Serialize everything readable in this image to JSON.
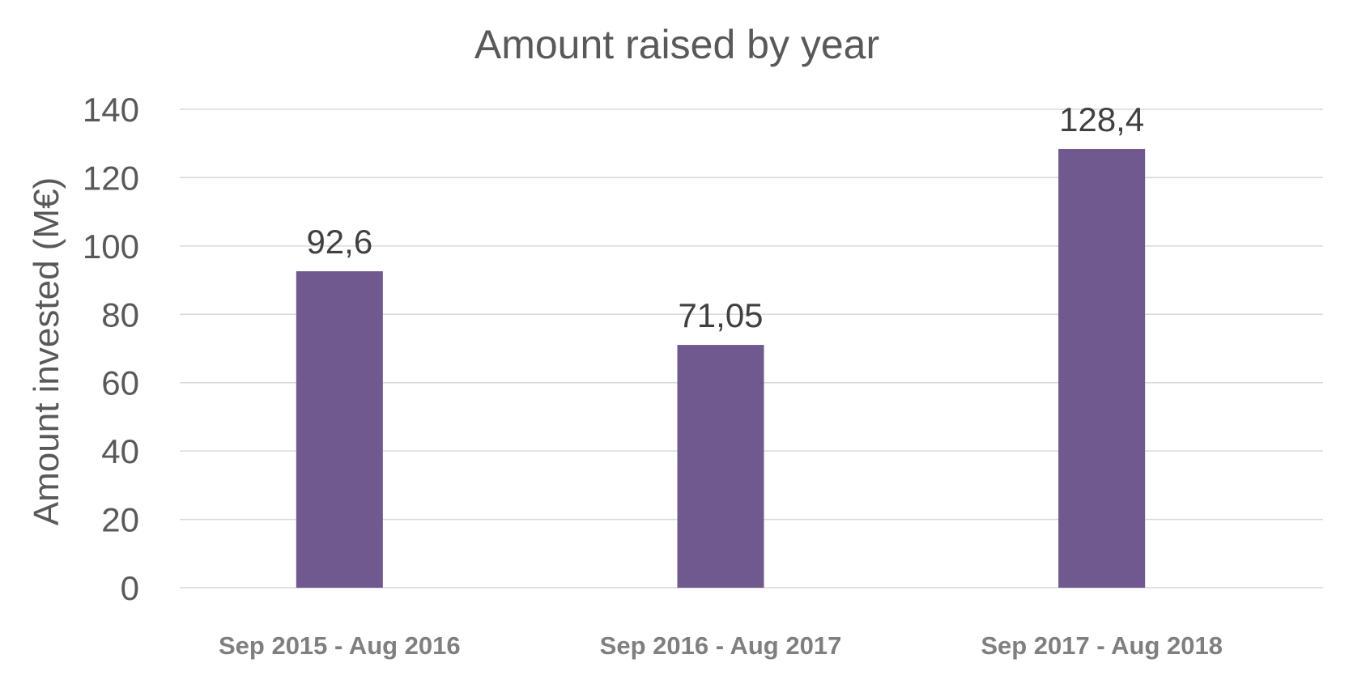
{
  "chart_data": {
    "type": "bar",
    "title": "Amount raised by year",
    "xlabel": "",
    "ylabel": "Amount invested (M€)",
    "categories": [
      "Sep 2015 - Aug 2016",
      "Sep 2016 - Aug 2017",
      "Sep 2017 - Aug 2018"
    ],
    "values": [
      92.6,
      71.05,
      128.4
    ],
    "data_labels": [
      "92,6",
      "71,05",
      "128,4"
    ],
    "yticks": [
      "0",
      "20",
      "40",
      "60",
      "80",
      "100",
      "120",
      "140"
    ],
    "ytick_values": [
      0,
      20,
      40,
      60,
      80,
      100,
      120,
      140
    ],
    "ylim": [
      0,
      140
    ],
    "grid": true,
    "legend": "none",
    "colors": {
      "bar": "#6f598e",
      "grid": "#d9d9d9",
      "text": "#595959",
      "xtick": "#7f7f7f",
      "data_label": "#404040"
    }
  }
}
